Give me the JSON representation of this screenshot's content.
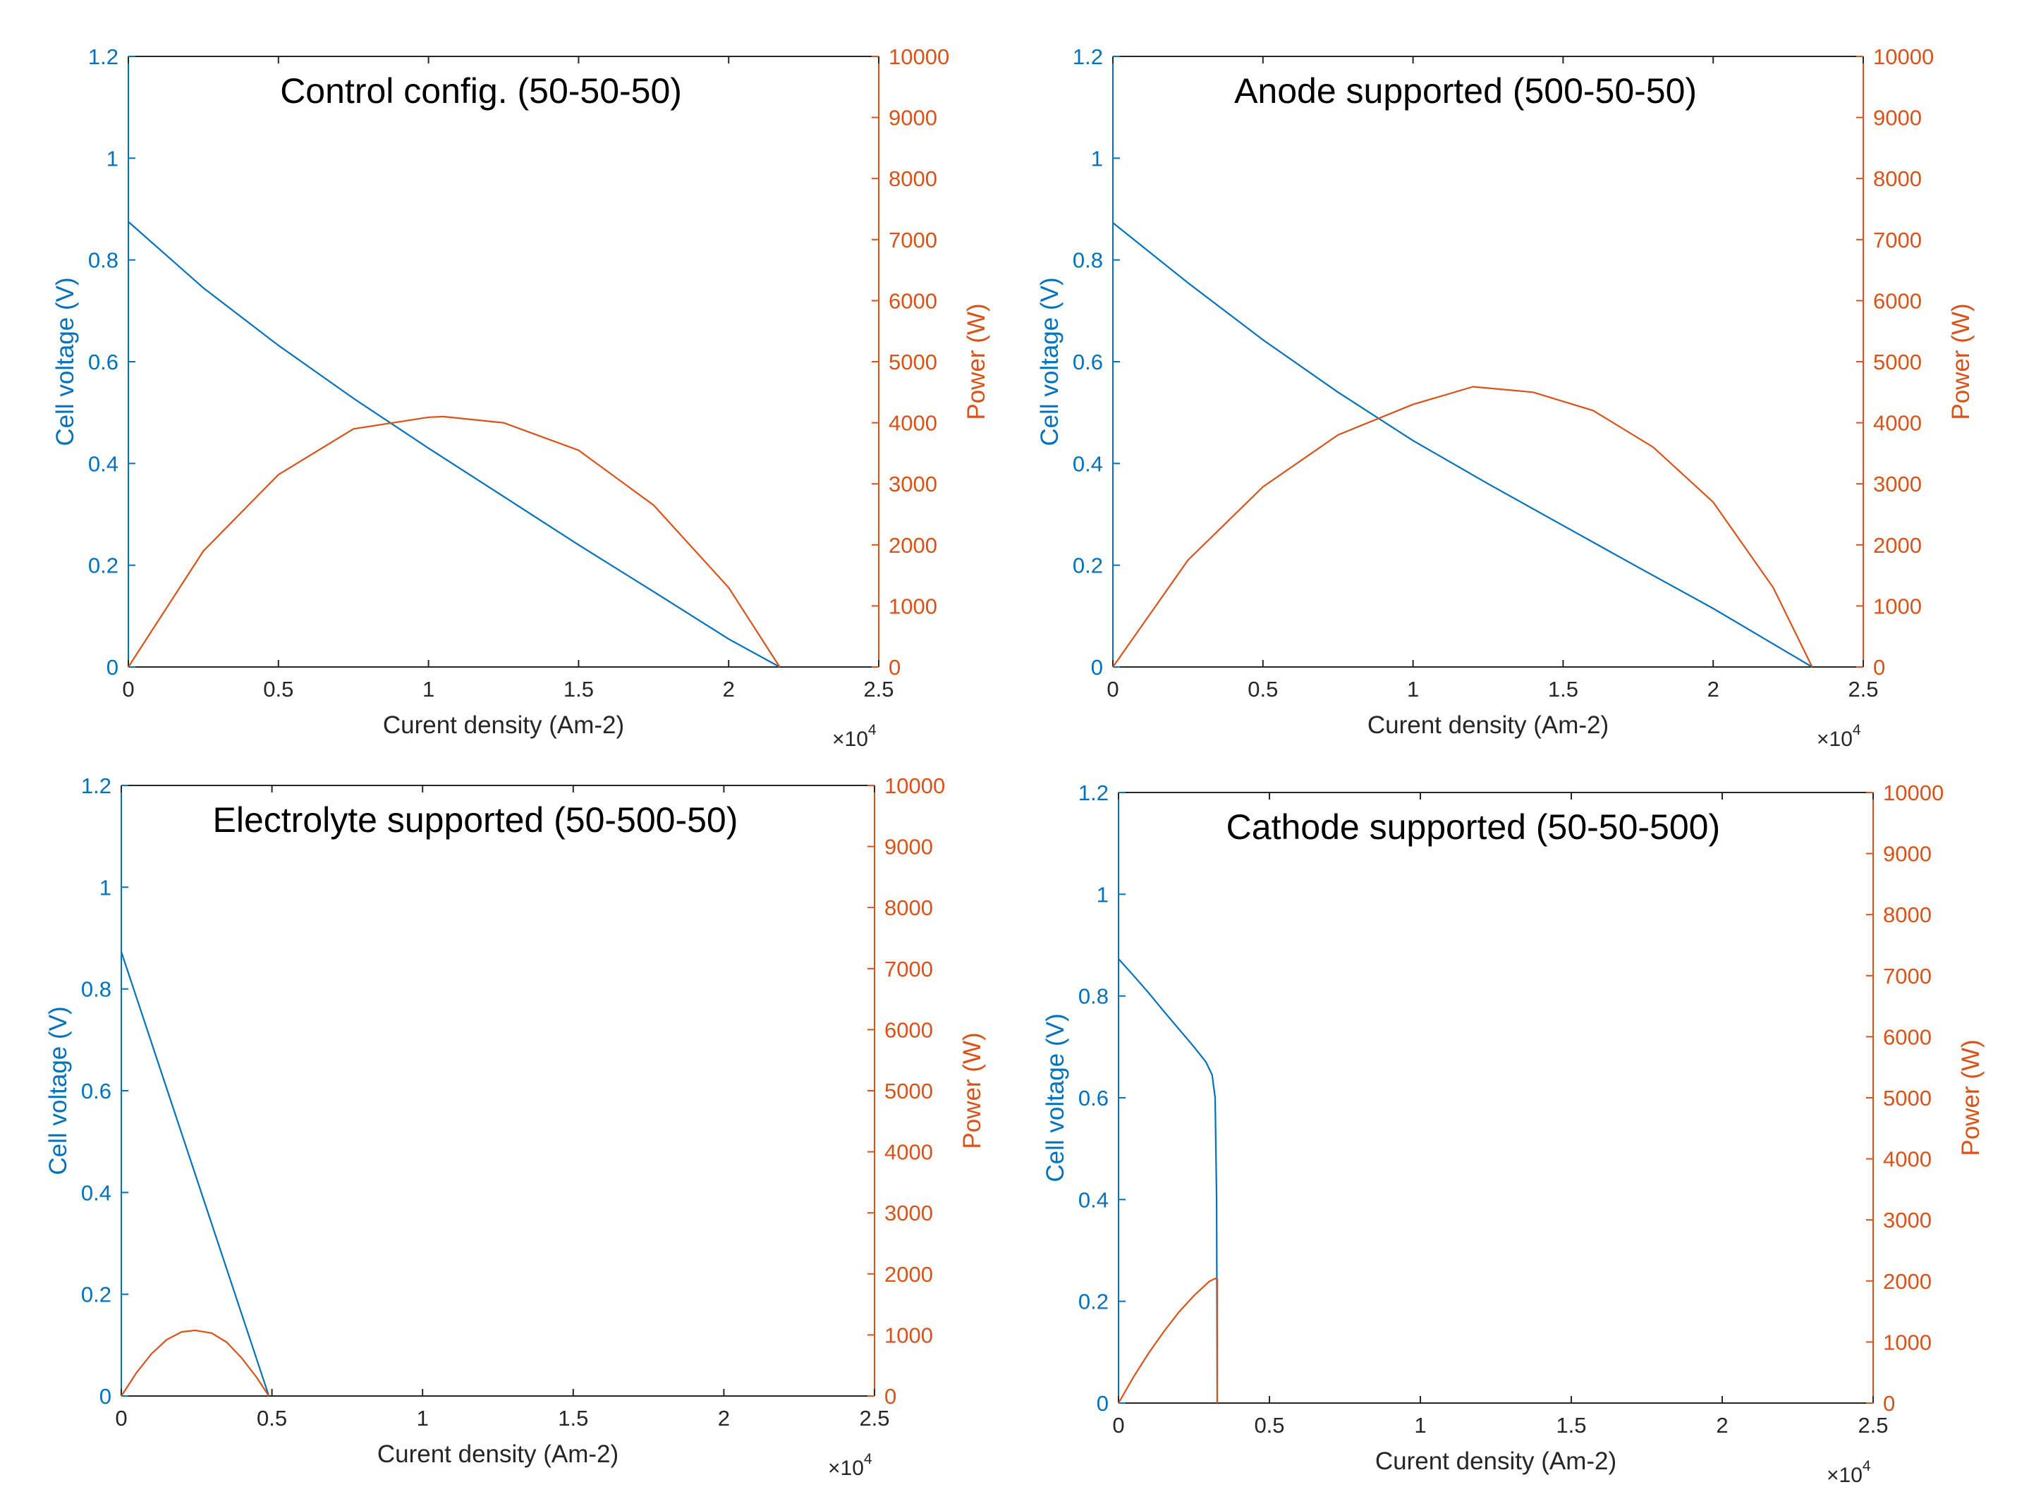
{
  "colors": {
    "voltage": "#0072BD",
    "power": "#D95319",
    "axis": "#262626",
    "title": "#000000"
  },
  "chart_data": [
    {
      "type": "line",
      "title": "Control config. (50-50-50)",
      "xlabel": "Curent density (Am-2)",
      "ylabel_left": "Cell voltage (V)",
      "ylabel_right": "Power (W)",
      "x_exponent_label": "×10",
      "x_exponent_sup": "4",
      "xlim": [
        0,
        2.5
      ],
      "ylim_left": [
        0,
        1.2
      ],
      "ylim_right": [
        0,
        10000
      ],
      "x_ticks": [
        "0",
        "0.5",
        "1",
        "1.5",
        "2",
        "2.5"
      ],
      "y_left_ticks": [
        "0",
        "0.2",
        "0.4",
        "0.6",
        "0.8",
        "1",
        "1.2"
      ],
      "y_right_ticks": [
        "0",
        "1000",
        "2000",
        "3000",
        "4000",
        "5000",
        "6000",
        "7000",
        "8000",
        "9000",
        "10000"
      ],
      "series": [
        {
          "name": "Cell voltage (V)",
          "axis": "left",
          "x": [
            0,
            0.25,
            0.5,
            0.75,
            1.0,
            1.25,
            1.5,
            1.75,
            2.0,
            2.17
          ],
          "y": [
            0.875,
            0.745,
            0.632,
            0.528,
            0.43,
            0.335,
            0.24,
            0.148,
            0.055,
            0
          ]
        },
        {
          "name": "Power (W)",
          "axis": "right",
          "x": [
            0,
            0.25,
            0.5,
            0.75,
            1.0,
            1.05,
            1.25,
            1.5,
            1.75,
            2.0,
            2.17
          ],
          "y": [
            0,
            1900,
            3150,
            3900,
            4090,
            4100,
            4000,
            3550,
            2650,
            1300,
            0
          ]
        }
      ]
    },
    {
      "type": "line",
      "title": "Anode supported (500-50-50)",
      "xlabel": "Curent density (Am-2)",
      "ylabel_left": "Cell voltage (V)",
      "ylabel_right": "Power (W)",
      "x_exponent_label": "×10",
      "x_exponent_sup": "4",
      "xlim": [
        0,
        2.5
      ],
      "ylim_left": [
        0,
        1.2
      ],
      "ylim_right": [
        0,
        10000
      ],
      "x_ticks": [
        "0",
        "0.5",
        "1",
        "1.5",
        "2",
        "2.5"
      ],
      "y_left_ticks": [
        "0",
        "0.2",
        "0.4",
        "0.6",
        "0.8",
        "1",
        "1.2"
      ],
      "y_right_ticks": [
        "0",
        "1000",
        "2000",
        "3000",
        "4000",
        "5000",
        "6000",
        "7000",
        "8000",
        "9000",
        "10000"
      ],
      "series": [
        {
          "name": "Cell voltage (V)",
          "axis": "left",
          "x": [
            0,
            0.25,
            0.5,
            0.75,
            1.0,
            1.25,
            1.5,
            1.75,
            2.0,
            2.33
          ],
          "y": [
            0.873,
            0.755,
            0.643,
            0.54,
            0.445,
            0.36,
            0.278,
            0.196,
            0.115,
            0
          ]
        },
        {
          "name": "Power (W)",
          "axis": "right",
          "x": [
            0,
            0.25,
            0.5,
            0.75,
            1.0,
            1.2,
            1.4,
            1.6,
            1.8,
            2.0,
            2.2,
            2.33
          ],
          "y": [
            0,
            1750,
            2950,
            3800,
            4300,
            4590,
            4500,
            4200,
            3600,
            2700,
            1300,
            0
          ]
        }
      ]
    },
    {
      "type": "line",
      "title": "Electrolyte supported (50-500-50)",
      "xlabel": "Curent density (Am-2)",
      "ylabel_left": "Cell voltage (V)",
      "ylabel_right": "Power (W)",
      "x_exponent_label": "×10",
      "x_exponent_sup": "4",
      "xlim": [
        0,
        2.5
      ],
      "ylim_left": [
        0,
        1.2
      ],
      "ylim_right": [
        0,
        10000
      ],
      "x_ticks": [
        "0",
        "0.5",
        "1",
        "1.5",
        "2",
        "2.5"
      ],
      "y_left_ticks": [
        "0",
        "0.2",
        "0.4",
        "0.6",
        "0.8",
        "1",
        "1.2"
      ],
      "y_right_ticks": [
        "0",
        "1000",
        "2000",
        "3000",
        "4000",
        "5000",
        "6000",
        "7000",
        "8000",
        "9000",
        "10000"
      ],
      "series": [
        {
          "name": "Cell voltage (V)",
          "axis": "left",
          "x": [
            0,
            0.49
          ],
          "y": [
            0.873,
            0
          ]
        },
        {
          "name": "Power (W)",
          "axis": "right",
          "x": [
            0,
            0.05,
            0.1,
            0.15,
            0.2,
            0.245,
            0.3,
            0.35,
            0.4,
            0.45,
            0.49
          ],
          "y": [
            0,
            380,
            690,
            920,
            1050,
            1075,
            1030,
            880,
            620,
            300,
            0
          ]
        }
      ]
    },
    {
      "type": "line",
      "title": "Cathode supported (50-50-500)",
      "xlabel": "Curent density (Am-2)",
      "ylabel_left": "Cell voltage (V)",
      "ylabel_right": "Power (W)",
      "x_exponent_label": "×10",
      "x_exponent_sup": "4",
      "xlim": [
        0,
        2.5
      ],
      "ylim_left": [
        0,
        1.2
      ],
      "ylim_right": [
        0,
        10000
      ],
      "x_ticks": [
        "0",
        "0.5",
        "1",
        "1.5",
        "2",
        "2.5"
      ],
      "y_left_ticks": [
        "0",
        "0.2",
        "0.4",
        "0.6",
        "0.8",
        "1",
        "1.2"
      ],
      "y_right_ticks": [
        "0",
        "1000",
        "2000",
        "3000",
        "4000",
        "5000",
        "6000",
        "7000",
        "8000",
        "9000",
        "10000"
      ],
      "series": [
        {
          "name": "Cell voltage (V)",
          "axis": "left",
          "x": [
            0,
            0.05,
            0.1,
            0.15,
            0.2,
            0.25,
            0.29,
            0.31,
            0.32,
            0.325,
            0.326,
            0.327
          ],
          "y": [
            0.873,
            0.84,
            0.806,
            0.77,
            0.735,
            0.7,
            0.67,
            0.645,
            0.6,
            0.4,
            0.2,
            0
          ]
        },
        {
          "name": "Power (W)",
          "axis": "right",
          "x": [
            0,
            0.05,
            0.1,
            0.15,
            0.2,
            0.25,
            0.3,
            0.32,
            0.327,
            0.327
          ],
          "y": [
            0,
            430,
            820,
            1170,
            1490,
            1760,
            1990,
            2040,
            2030,
            0
          ]
        }
      ]
    }
  ]
}
